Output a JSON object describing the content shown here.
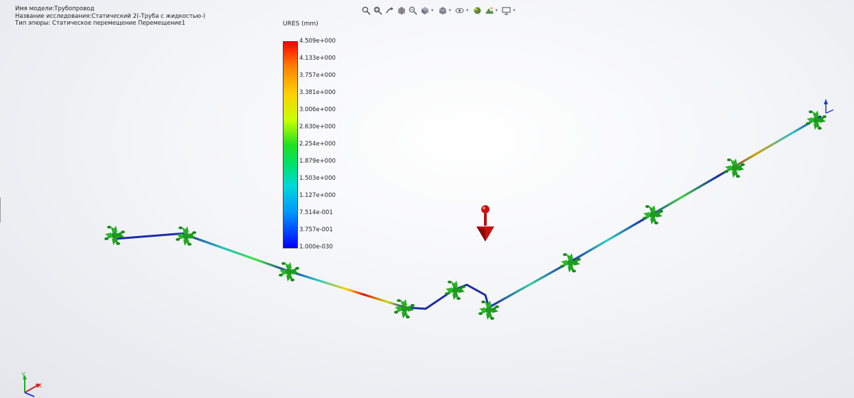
{
  "info": {
    "model_name": "Имя модели:Трубопровод",
    "study_name": "Название исследования:Статический 2(-Труба с жидкостью-)",
    "plot_type": "Тип эпюры: Статическое перемещение Перемещение1"
  },
  "legend": {
    "title": "URES (mm)",
    "values": [
      "4.509e+000",
      "4.133e+000",
      "3.757e+000",
      "3.381e+000",
      "3.006e+000",
      "2.630e+000",
      "2.254e+000",
      "1.879e+000",
      "1.503e+000",
      "1.127e+000",
      "7.514e-001",
      "3.757e-001",
      "1.000e-030"
    ]
  },
  "toolbar": {
    "icons": [
      "zoom-to-fit-icon",
      "zoom-area-icon",
      "previous-view-icon",
      "section-view-icon",
      "view-selector-icon",
      "view-orientation-icon",
      "display-style-icon",
      "hide-show-icon",
      "appearance-icon",
      "scene-icon",
      "display-settings-icon"
    ]
  },
  "triad": {
    "y_label": "Y",
    "x_label": "X"
  },
  "colors": {
    "support": "#22aa22",
    "load": "#c81010",
    "pipe_low": "#1a2aa8",
    "pipe_high": "#e01010"
  }
}
